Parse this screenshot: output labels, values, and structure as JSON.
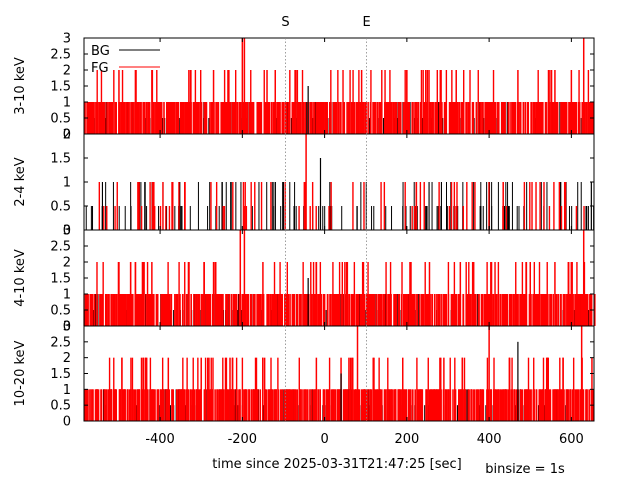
{
  "chart_data": {
    "type": "bar",
    "xlabel": "time since 2025-03-31T21:47:25 [sec]",
    "binsize_label": "binsize = 1s",
    "xlim": [
      -585,
      655
    ],
    "x_ticks": [
      -400,
      -200,
      0,
      200,
      400,
      600
    ],
    "x_tick_labels": [
      "-400",
      "-200",
      "0",
      "200",
      "400",
      "600"
    ],
    "markers": [
      {
        "label": "S",
        "x": -95
      },
      {
        "label": "E",
        "x": 102
      }
    ],
    "legend": {
      "placement": "top-left",
      "entries": [
        {
          "name": "BG",
          "color": "#000000"
        },
        {
          "name": "FG",
          "color": "#ff0000"
        }
      ]
    },
    "series_colors": {
      "BG": "#000000",
      "FG": "#ff0000"
    },
    "panels": [
      {
        "ylabel": "3-10 keV",
        "ylim": [
          0,
          3
        ],
        "yticks": [
          "0",
          "0.5",
          "1",
          "1.5",
          "2",
          "2.5",
          "3"
        ],
        "yvalues": [
          0,
          0.5,
          1,
          1.5,
          2,
          2.5,
          3
        ],
        "fg_spikes": [
          {
            "x": -200,
            "value": 3
          },
          {
            "x": -195,
            "value": 3
          },
          {
            "x": 630,
            "value": 3
          },
          {
            "x": -500,
            "value": 2
          },
          {
            "x": -460,
            "value": 2
          },
          {
            "x": -420,
            "value": 2
          },
          {
            "x": -330,
            "value": 2
          },
          {
            "x": -270,
            "value": 2
          },
          {
            "x": -235,
            "value": 2
          },
          {
            "x": -140,
            "value": 2
          },
          {
            "x": -120,
            "value": 2
          },
          {
            "x": -70,
            "value": 2
          },
          {
            "x": 90,
            "value": 2
          },
          {
            "x": 200,
            "value": 2
          },
          {
            "x": 250,
            "value": 2
          },
          {
            "x": 320,
            "value": 2
          },
          {
            "x": 470,
            "value": 2
          },
          {
            "x": 560,
            "value": 2
          },
          {
            "x": 600,
            "value": 2
          }
        ],
        "bg_spikes": [
          {
            "x": -40,
            "value": 1.5
          }
        ]
      },
      {
        "ylabel": "2-4 keV",
        "ylim": [
          0,
          2
        ],
        "yticks": [
          "0",
          "0.5",
          "1",
          "1.5",
          "2"
        ],
        "yvalues": [
          0,
          0.5,
          1,
          1.5,
          2
        ],
        "fg_spikes": [
          {
            "x": -45,
            "value": 2
          }
        ],
        "bg_spikes": [
          {
            "x": -10,
            "value": 1.5
          }
        ]
      },
      {
        "ylabel": "4-10 keV",
        "ylim": [
          0,
          3
        ],
        "yticks": [
          "0",
          "0.5",
          "1",
          "1.5",
          "2",
          "2.5",
          "3"
        ],
        "yvalues": [
          0,
          0.5,
          1,
          1.5,
          2,
          2.5,
          3
        ],
        "fg_spikes": [
          {
            "x": -205,
            "value": 3
          },
          {
            "x": -195,
            "value": 3
          },
          {
            "x": 630,
            "value": 3
          },
          {
            "x": -500,
            "value": 2
          },
          {
            "x": -460,
            "value": 2
          },
          {
            "x": -420,
            "value": 2
          },
          {
            "x": -330,
            "value": 2
          },
          {
            "x": -270,
            "value": 2
          },
          {
            "x": -150,
            "value": 2
          },
          {
            "x": 210,
            "value": 2
          },
          {
            "x": 255,
            "value": 2
          },
          {
            "x": 330,
            "value": 2
          },
          {
            "x": 500,
            "value": 2
          },
          {
            "x": 560,
            "value": 2
          },
          {
            "x": 600,
            "value": 2
          }
        ],
        "bg_spikes": [
          {
            "x": -40,
            "value": 1.5
          }
        ]
      },
      {
        "ylabel": "10-20 keV",
        "ylim": [
          0,
          3
        ],
        "yticks": [
          "0",
          "0.5",
          "1",
          "1.5",
          "2",
          "2.5",
          "3"
        ],
        "yvalues": [
          0,
          0.5,
          1,
          1.5,
          2,
          2.5,
          3
        ],
        "fg_spikes": [
          {
            "x": 80,
            "value": 3
          },
          {
            "x": 400,
            "value": 3
          },
          {
            "x": 625,
            "value": 3
          },
          {
            "x": -440,
            "value": 2
          },
          {
            "x": -380,
            "value": 2
          },
          {
            "x": -300,
            "value": 2
          },
          {
            "x": -230,
            "value": 2
          },
          {
            "x": -150,
            "value": 2
          },
          {
            "x": -20,
            "value": 2
          },
          {
            "x": 40,
            "value": 2
          },
          {
            "x": 190,
            "value": 2
          },
          {
            "x": 290,
            "value": 2
          },
          {
            "x": 340,
            "value": 2
          },
          {
            "x": 450,
            "value": 2
          },
          {
            "x": 540,
            "value": 2
          },
          {
            "x": 580,
            "value": 2
          },
          {
            "x": 650,
            "value": 2
          }
        ],
        "bg_spikes": [
          {
            "x": 470,
            "value": 2.5
          },
          {
            "x": 40,
            "value": 1.5
          }
        ]
      }
    ]
  }
}
